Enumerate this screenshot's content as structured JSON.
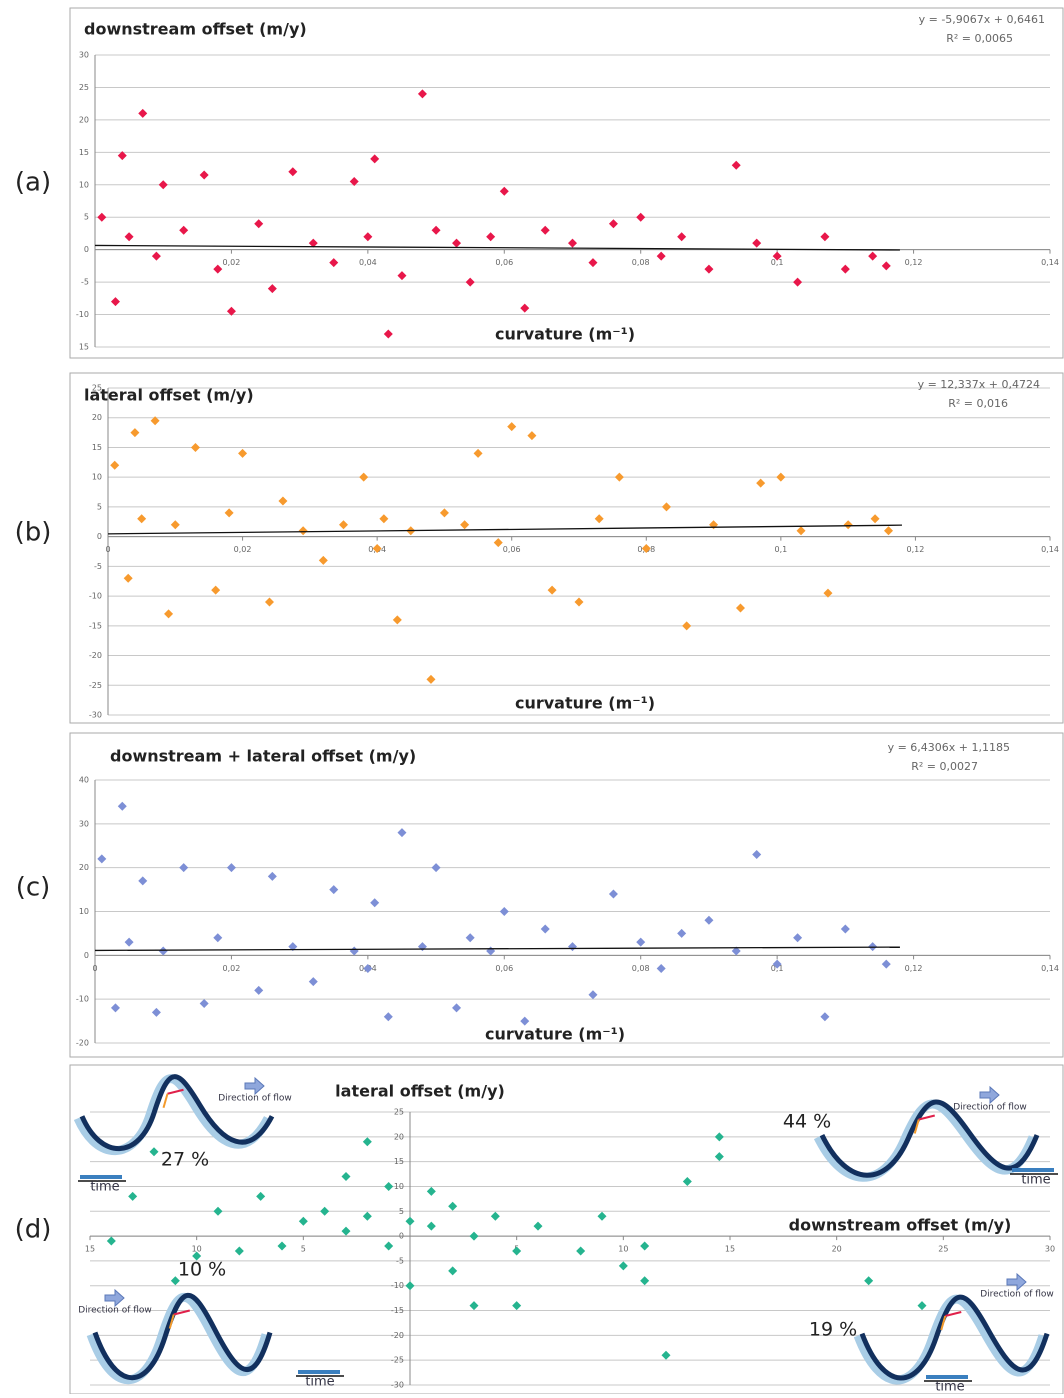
{
  "chart_data": [
    {
      "type": "scatter",
      "panel_label": "(a)",
      "title": "downstream offset (m/y)",
      "equation": "y = -5,9067x + 0,6461",
      "r_squared": "R² = 0,0065",
      "xlabel": "curvature (m⁻¹)",
      "xlim": [
        0,
        0.14
      ],
      "ylim": [
        -15,
        30
      ],
      "xticks": [
        {
          "value": 0.02,
          "label": "0,02"
        },
        {
          "value": 0.04,
          "label": "0,04"
        },
        {
          "value": 0.06,
          "label": "0,06"
        },
        {
          "value": 0.08,
          "label": "0,08"
        },
        {
          "value": 0.1,
          "label": "0,1"
        },
        {
          "value": 0.12,
          "label": "0,12"
        },
        {
          "value": 0.14,
          "label": "0,14"
        }
      ],
      "yticks": [
        30,
        25,
        20,
        15,
        10,
        5,
        0,
        -5,
        -10,
        {
          "value": -15,
          "label": "15"
        }
      ],
      "grid": true,
      "series": [
        {
          "color": "#e8174a",
          "x": [
            0.001,
            0.003,
            0.004,
            0.005,
            0.007,
            0.009,
            0.01,
            0.013,
            0.016,
            0.018,
            0.02,
            0.024,
            0.026,
            0.029,
            0.032,
            0.035,
            0.038,
            0.04,
            0.041,
            0.043,
            0.045,
            0.048,
            0.05,
            0.053,
            0.055,
            0.058,
            0.06,
            0.063,
            0.066,
            0.07,
            0.073,
            0.076,
            0.08,
            0.083,
            0.086,
            0.09,
            0.094,
            0.097,
            0.1,
            0.103,
            0.107,
            0.11,
            0.114,
            0.116
          ],
          "values": [
            5,
            -8,
            14.5,
            2,
            21,
            -1,
            10,
            3,
            11.5,
            -3,
            -9.5,
            4,
            -6,
            12,
            1,
            -2,
            10.5,
            2,
            14,
            -13,
            -4,
            24,
            3,
            1,
            -5,
            2,
            9,
            -9,
            3,
            1,
            -2,
            4,
            5,
            -1,
            2,
            -3,
            13,
            1,
            -1,
            -5,
            2,
            -3,
            -1,
            -2.5
          ]
        }
      ],
      "trendline": {
        "x": [
          0,
          0.118
        ],
        "values": [
          0.65,
          -0.05
        ]
      }
    },
    {
      "type": "scatter",
      "panel_label": "(b)",
      "title": "lateral offset (m/y)",
      "equation": "y = 12,337x + 0,4724",
      "r_squared": "R² = 0,016",
      "xlabel": "curvature (m⁻¹)",
      "xlim": [
        0,
        0.14
      ],
      "ylim": [
        -30,
        25
      ],
      "xticks": [
        0,
        {
          "value": 0.02,
          "label": "0,02"
        },
        {
          "value": 0.04,
          "label": "0,04"
        },
        {
          "value": 0.06,
          "label": "0,06"
        },
        {
          "value": 0.08,
          "label": "0,08"
        },
        {
          "value": 0.1,
          "label": "0,1"
        },
        {
          "value": 0.12,
          "label": "0,12"
        },
        {
          "value": 0.14,
          "label": "0,14"
        }
      ],
      "yticks": [
        25,
        20,
        15,
        10,
        5,
        0,
        -5,
        -10,
        -15,
        -20,
        -25,
        -30
      ],
      "grid": true,
      "series": [
        {
          "color": "#f79a2e",
          "x": [
            0.001,
            0.003,
            0.004,
            0.005,
            0.007,
            0.009,
            0.01,
            0.013,
            0.016,
            0.018,
            0.02,
            0.024,
            0.026,
            0.029,
            0.032,
            0.035,
            0.038,
            0.04,
            0.041,
            0.043,
            0.045,
            0.048,
            0.05,
            0.053,
            0.055,
            0.058,
            0.06,
            0.063,
            0.066,
            0.07,
            0.073,
            0.076,
            0.08,
            0.083,
            0.086,
            0.09,
            0.094,
            0.097,
            0.1,
            0.103,
            0.107,
            0.11,
            0.114,
            0.116
          ],
          "values": [
            12,
            -7,
            17.5,
            3,
            19.5,
            -13,
            2,
            15,
            -9,
            4,
            14,
            -11,
            6,
            1,
            -4,
            2,
            10,
            -2,
            3,
            -14,
            1,
            -24,
            4,
            2,
            14,
            -1,
            18.5,
            17,
            -9,
            -11,
            3,
            10,
            -2,
            5,
            -15,
            2,
            -12,
            9,
            10,
            1,
            -9.5,
            2,
            3,
            1
          ]
        }
      ],
      "trendline": {
        "x": [
          0,
          0.118
        ],
        "values": [
          0.47,
          1.93
        ]
      }
    },
    {
      "type": "scatter",
      "panel_label": "(c)",
      "title": "downstream + lateral offset (m/y)",
      "equation": "y = 6,4306x + 1,1185",
      "r_squared": "R² = 0,0027",
      "xlabel": "curvature (m⁻¹)",
      "xlim": [
        0,
        0.14
      ],
      "ylim": [
        -20,
        40
      ],
      "xticks": [
        0,
        {
          "value": 0.02,
          "label": "0,02"
        },
        {
          "value": 0.04,
          "label": "0,04"
        },
        {
          "value": 0.06,
          "label": "0,06"
        },
        {
          "value": 0.08,
          "label": "0,08"
        },
        {
          "value": 0.1,
          "label": "0,1"
        },
        {
          "value": 0.12,
          "label": "0,12"
        },
        {
          "value": 0.14,
          "label": "0,14"
        }
      ],
      "yticks": [
        40,
        30,
        20,
        10,
        0,
        -10,
        -20
      ],
      "grid": true,
      "series": [
        {
          "color": "#7d8fd6",
          "x": [
            0.001,
            0.003,
            0.004,
            0.005,
            0.007,
            0.009,
            0.01,
            0.013,
            0.016,
            0.018,
            0.02,
            0.024,
            0.026,
            0.029,
            0.032,
            0.035,
            0.038,
            0.04,
            0.041,
            0.043,
            0.045,
            0.048,
            0.05,
            0.053,
            0.055,
            0.058,
            0.06,
            0.063,
            0.066,
            0.07,
            0.073,
            0.076,
            0.08,
            0.083,
            0.086,
            0.09,
            0.094,
            0.097,
            0.1,
            0.103,
            0.107,
            0.11,
            0.114,
            0.116
          ],
          "values": [
            22,
            -12,
            34,
            3,
            17,
            -13,
            1,
            20,
            -11,
            4,
            20,
            -8,
            18,
            2,
            -6,
            15,
            1,
            -3,
            12,
            -14,
            28,
            2,
            20,
            -12,
            4,
            1,
            10,
            -15,
            6,
            2,
            -9,
            14,
            3,
            -3,
            5,
            8,
            1,
            23,
            -2,
            4,
            -14,
            6,
            2,
            -2
          ]
        }
      ],
      "trendline": {
        "x": [
          0,
          0.118
        ],
        "values": [
          1.12,
          1.88
        ]
      }
    },
    {
      "type": "scatter",
      "panel_label": "(d)",
      "title": "lateral offset (m/y)",
      "xlabel": "downstream  offset (m/y)",
      "xlim": [
        -15,
        30
      ],
      "ylim": [
        -30,
        25
      ],
      "xticks": [
        {
          "value": -15,
          "label": "15"
        },
        {
          "value": -10,
          "label": "10"
        },
        {
          "value": -5,
          "label": "5"
        },
        5,
        10,
        15,
        20,
        25,
        30
      ],
      "yticks": [
        25,
        20,
        15,
        10,
        5,
        0,
        -5,
        -10,
        -15,
        -20,
        -25,
        -30
      ],
      "grid": true,
      "series": [
        {
          "color": "#25b48f",
          "x": [
            -5,
            -4,
            -3,
            -2,
            -1,
            0,
            1,
            2,
            3,
            4,
            5,
            6,
            -6,
            -7,
            -8,
            -9,
            -10,
            -11,
            -12,
            -13,
            -14,
            8,
            9,
            10,
            11,
            12,
            13,
            14.5,
            14.5,
            21.5,
            24,
            -2,
            3,
            0,
            -1,
            2,
            5,
            1,
            -3,
            11
          ],
          "values": [
            3,
            5,
            1,
            4,
            -2,
            3,
            2,
            6,
            0,
            4,
            -3,
            2,
            -2,
            8,
            -3,
            5,
            -4,
            -9,
            17,
            8,
            -1,
            -3,
            4,
            -6,
            -9,
            -24,
            11,
            20,
            16,
            -9,
            -14,
            19,
            -14,
            -10,
            10,
            -7,
            -14,
            9,
            12,
            -2
          ]
        }
      ],
      "insets": [
        {
          "percent": "27 %",
          "flow": "Direction of flow",
          "time": "time"
        },
        {
          "percent": "44 %",
          "flow": "Direction of flow",
          "time": "time"
        },
        {
          "percent": "10 %",
          "flow": "Direction of flow",
          "time": "time"
        },
        {
          "percent": "19 %",
          "flow": "Direction of flow",
          "time": "time"
        }
      ]
    }
  ]
}
